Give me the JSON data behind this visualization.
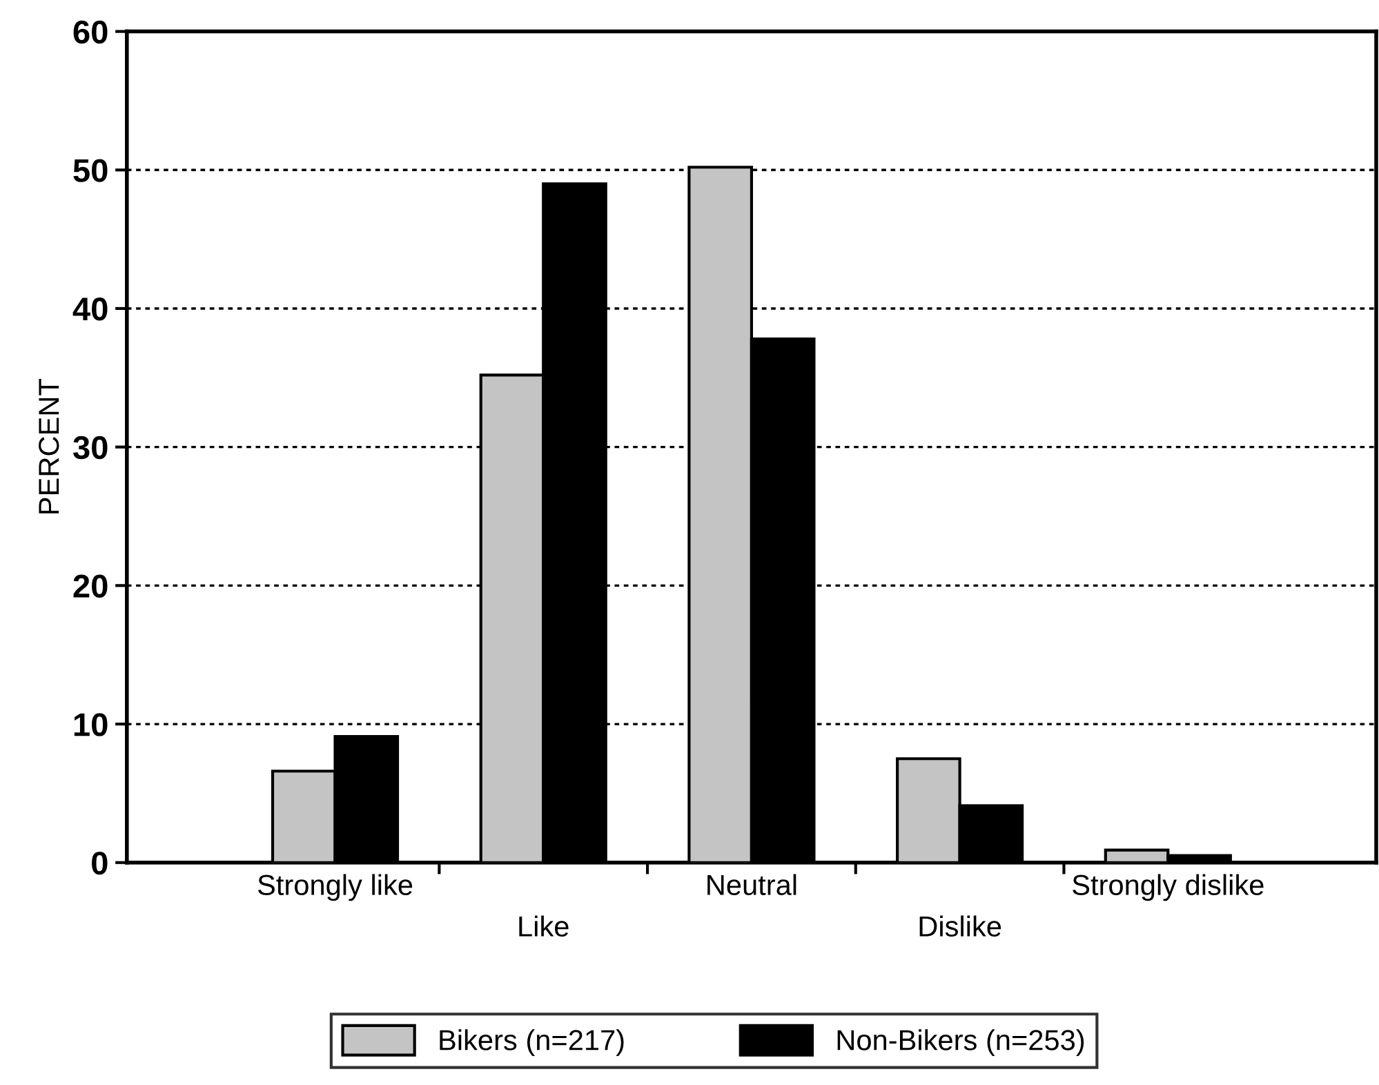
{
  "chart_data": {
    "type": "bar",
    "ylabel": "PERCENT",
    "categories": [
      "Strongly like",
      "Like",
      "Neutral",
      "Dislike",
      "Strongly dislike"
    ],
    "series": [
      {
        "name": "Bikers (n=217)",
        "color": "#c4c4c4",
        "values": [
          6.6,
          35.2,
          50.2,
          7.5,
          0.9
        ]
      },
      {
        "name": "Non-Bikers (n=253)",
        "color": "#000000",
        "values": [
          9.1,
          49.0,
          37.8,
          4.1,
          0.5
        ]
      }
    ],
    "ylim": [
      0,
      60
    ],
    "yticks": [
      0,
      10,
      20,
      30,
      40,
      50,
      60
    ],
    "grid": "y",
    "legend": "bottom"
  }
}
